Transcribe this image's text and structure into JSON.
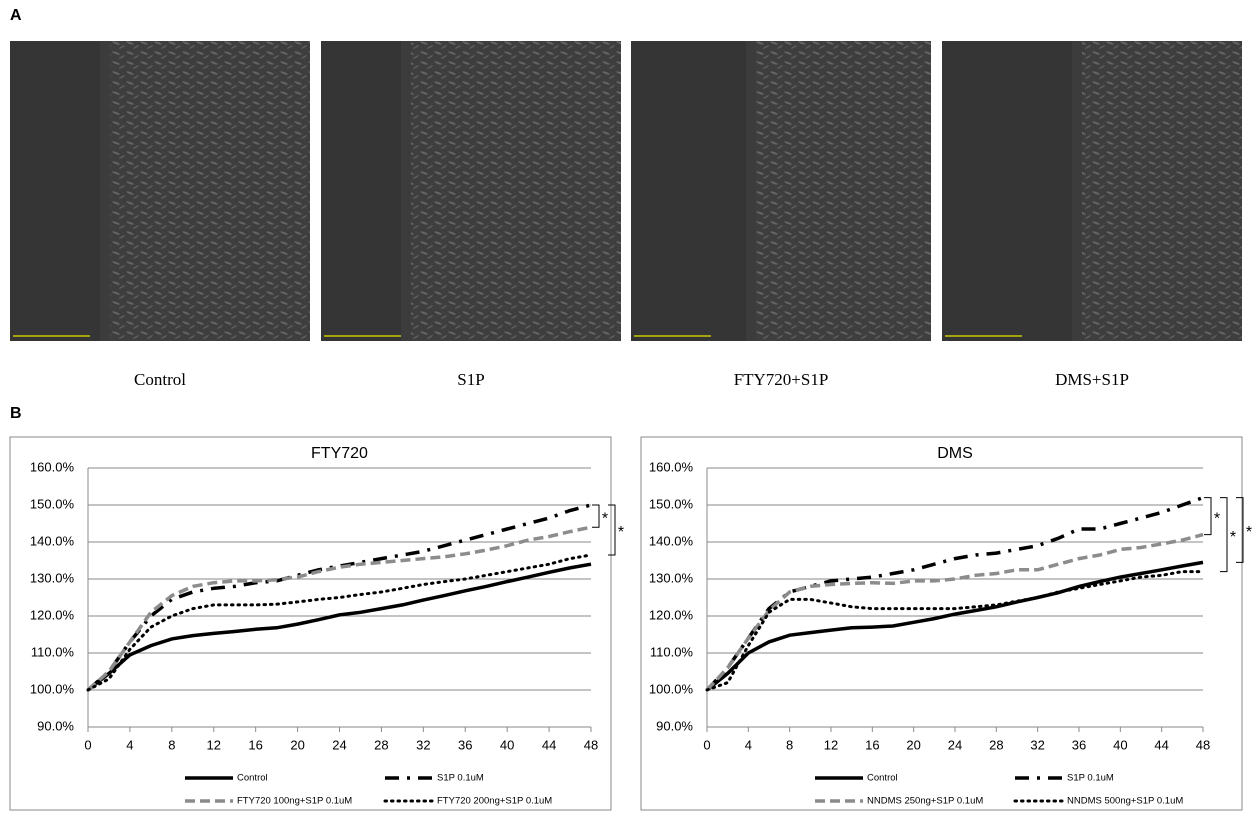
{
  "figure": {
    "panel_a": "A",
    "panel_b": "B",
    "captions": [
      "Control",
      "S1P",
      "FTY720+S1P",
      "DMS+S1P"
    ]
  },
  "chart_data": [
    {
      "type": "line",
      "title": "FTY720",
      "x": [
        0,
        2,
        4,
        6,
        8,
        10,
        12,
        14,
        16,
        18,
        20,
        22,
        24,
        26,
        28,
        30,
        32,
        34,
        36,
        38,
        40,
        42,
        44,
        46,
        48
      ],
      "xlim": [
        0,
        48
      ],
      "xticks": [
        0,
        4,
        8,
        12,
        16,
        20,
        24,
        28,
        32,
        36,
        40,
        44,
        48
      ],
      "ylim": [
        90,
        160
      ],
      "yticks": [
        {
          "value": 90,
          "label": "90.0%"
        },
        {
          "value": 100,
          "label": "100.0%"
        },
        {
          "value": 110,
          "label": "110.0%"
        },
        {
          "value": 120,
          "label": "120.0%"
        },
        {
          "value": 130,
          "label": "130.0%"
        },
        {
          "value": 140,
          "label": "140.0%"
        },
        {
          "value": 150,
          "label": "150.0%"
        },
        {
          "value": 160,
          "label": "160.0%"
        }
      ],
      "grid": true,
      "series": [
        {
          "name": "Control",
          "color": "#000000",
          "dash": "solid",
          "values": [
            100,
            104.5,
            109.5,
            112,
            113.8,
            114.7,
            115.3,
            115.8,
            116.4,
            116.8,
            117.8,
            119,
            120.3,
            121,
            122,
            123,
            124.3,
            125.5,
            126.8,
            128,
            129.3,
            130.5,
            131.8,
            133,
            134
          ]
        },
        {
          "name": "S1P 0.1uM",
          "color": "#000000",
          "dash": "dashdot",
          "values": [
            100,
            105,
            113,
            120,
            124.5,
            126.5,
            127.5,
            128,
            129,
            129.5,
            131,
            132.5,
            133.5,
            134.5,
            135.5,
            136.5,
            137.5,
            139,
            140.5,
            142,
            143.5,
            145,
            146.5,
            148.5,
            150
          ]
        },
        {
          "name": "FTY720 100ng+S1P 0.1uM",
          "color": "#8c8c8c",
          "dash": "dashed",
          "values": [
            100,
            105,
            113,
            121,
            125.5,
            128,
            129,
            129.5,
            129.5,
            129.8,
            130.5,
            132,
            133.2,
            134,
            134.5,
            135,
            135.5,
            136,
            136.8,
            137.8,
            139,
            140.5,
            141.5,
            142.8,
            144
          ]
        },
        {
          "name": "FTY720 200ng+S1P 0.1uM",
          "color": "#000000",
          "dash": "dotted",
          "values": [
            100,
            103,
            111,
            117,
            120,
            122,
            123,
            123,
            123,
            123.2,
            123.8,
            124.5,
            125,
            125.8,
            126.5,
            127.5,
            128.5,
            129.3,
            130,
            131,
            132,
            133,
            134,
            135.5,
            136.5
          ]
        }
      ],
      "annotations": [
        "*",
        "*"
      ]
    },
    {
      "type": "line",
      "title": "DMS",
      "x": [
        0,
        2,
        4,
        6,
        8,
        10,
        12,
        14,
        16,
        18,
        20,
        22,
        24,
        26,
        28,
        30,
        32,
        34,
        36,
        38,
        40,
        42,
        44,
        46,
        48
      ],
      "xlim": [
        0,
        48
      ],
      "xticks": [
        0,
        4,
        8,
        12,
        16,
        20,
        24,
        28,
        32,
        36,
        40,
        44,
        48
      ],
      "ylim": [
        90,
        160
      ],
      "yticks": [
        {
          "value": 90,
          "label": "90.0%"
        },
        {
          "value": 100,
          "label": "100.0%"
        },
        {
          "value": 110,
          "label": "110.0%"
        },
        {
          "value": 120,
          "label": "120.0%"
        },
        {
          "value": 130,
          "label": "130.0%"
        },
        {
          "value": 140,
          "label": "140.0%"
        },
        {
          "value": 150,
          "label": "150.0%"
        },
        {
          "value": 160,
          "label": "160.0%"
        }
      ],
      "grid": true,
      "series": [
        {
          "name": "Control",
          "color": "#000000",
          "dash": "solid",
          "values": [
            100,
            104.5,
            110,
            113,
            114.8,
            115.5,
            116.2,
            116.8,
            117,
            117.3,
            118.3,
            119.3,
            120.5,
            121.5,
            122.5,
            123.8,
            125,
            126.3,
            128,
            129.3,
            130.5,
            131.5,
            132.5,
            133.5,
            134.5
          ]
        },
        {
          "name": "S1P 0.1uM",
          "color": "#000000",
          "dash": "dashdot",
          "values": [
            100,
            106,
            114,
            122,
            126.5,
            128,
            129.5,
            130,
            130.5,
            131.5,
            132.5,
            134,
            135.5,
            136.5,
            137,
            138,
            139,
            141,
            143.5,
            143.5,
            145,
            146.5,
            148,
            150,
            152
          ]
        },
        {
          "name": "NNDMS 250ng+S1P 0.1uM",
          "color": "#8c8c8c",
          "dash": "dashed",
          "values": [
            100,
            106,
            114,
            121.5,
            126.5,
            128,
            128.5,
            128.8,
            129,
            128.8,
            129.5,
            129.5,
            130,
            131,
            131.5,
            132.5,
            132.5,
            134,
            135.5,
            136.5,
            138,
            138.5,
            139.5,
            140.5,
            142
          ]
        },
        {
          "name": "NNDMS 500ng+S1P 0.1uM",
          "color": "#000000",
          "dash": "dotted",
          "values": [
            100,
            102,
            112,
            121,
            124.5,
            124.5,
            123.5,
            122.5,
            122,
            122,
            122,
            122,
            122,
            122.5,
            123,
            124,
            125,
            126.5,
            127.5,
            128.5,
            129.5,
            130.5,
            131,
            132,
            132
          ]
        }
      ],
      "annotations": [
        "*",
        "*",
        "*"
      ]
    }
  ]
}
